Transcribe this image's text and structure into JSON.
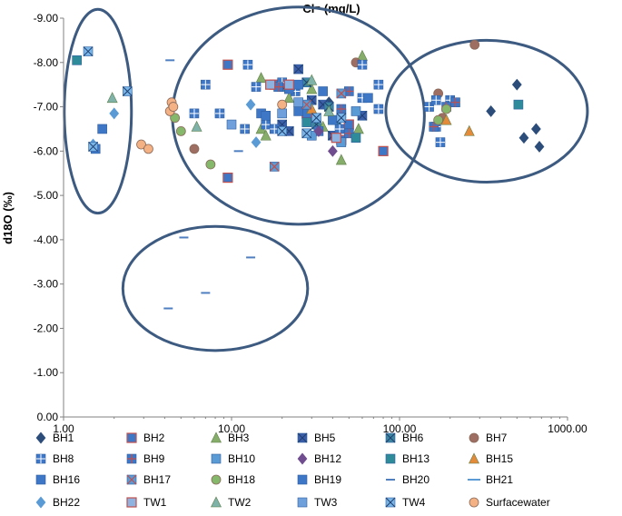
{
  "chart_data": {
    "type": "scatter",
    "title": "Cl⁻ (mg/L)",
    "ylabel": "d18O (‰)",
    "xscale": "log",
    "xlim": [
      1,
      1000
    ],
    "ylim": [
      0,
      -9
    ],
    "x_ticks": [
      "1.00",
      "10.00",
      "100.00",
      "1000.00"
    ],
    "y_ticks": [
      "0.00",
      "-1.00",
      "-2.00",
      "-3.00",
      "-4.00",
      "-5.00",
      "-6.00",
      "-7.00",
      "-8.00",
      "-9.00"
    ],
    "grid": false,
    "legend_position": "bottom",
    "groups": [
      {
        "label": "group-fresh",
        "cx": 1.6,
        "cy": -6.9,
        "rx_log": 0.2,
        "ry": 2.3
      },
      {
        "label": "group-mixed",
        "cx": 25,
        "cy": -6.8,
        "rx_log": 0.75,
        "ry": 2.45
      },
      {
        "label": "group-saline",
        "cx": 330,
        "cy": -6.9,
        "rx_log": 0.6,
        "ry": 1.6
      },
      {
        "label": "group-bh20",
        "cx": 8,
        "cy": -2.9,
        "rx_log": 0.55,
        "ry": 1.4
      }
    ],
    "series": [
      {
        "name": "BH1",
        "marker": "diamond",
        "color": "#2c4d7a",
        "points": [
          [
            500,
            -7.5
          ],
          [
            350,
            -6.9
          ],
          [
            650,
            -6.5
          ],
          [
            550,
            -6.3
          ],
          [
            680,
            -6.1
          ],
          [
            38,
            -7.1
          ]
        ]
      },
      {
        "name": "BH2",
        "marker": "square-red",
        "color": "#3f77c7",
        "points": [
          [
            9.5,
            -7.95
          ],
          [
            9.5,
            -5.4
          ],
          [
            18,
            -7.5
          ],
          [
            45,
            -6.25
          ],
          [
            50,
            -6.6
          ],
          [
            80,
            -6.0
          ],
          [
            28,
            -6.85
          ]
        ]
      },
      {
        "name": "BH3",
        "marker": "triangle",
        "color": "#87ad6b",
        "points": [
          [
            15,
            -7.65
          ],
          [
            30,
            -7.4
          ],
          [
            22,
            -7.2
          ],
          [
            15,
            -6.5
          ],
          [
            16,
            -6.35
          ],
          [
            35,
            -6.55
          ],
          [
            60,
            -8.15
          ],
          [
            45,
            -5.8
          ],
          [
            57,
            -6.5
          ]
        ]
      },
      {
        "name": "BH5",
        "marker": "square-x",
        "color": "#3c5ea8",
        "points": [
          [
            25,
            -7.85
          ],
          [
            30,
            -7.15
          ],
          [
            20,
            -6.6
          ],
          [
            22,
            -6.45
          ],
          [
            35,
            -7.05
          ],
          [
            45,
            -6.85
          ],
          [
            60,
            -6.8
          ],
          [
            40,
            -6.35
          ]
        ]
      },
      {
        "name": "BH6",
        "marker": "square-x",
        "color": "#3c86a0",
        "points": [
          [
            28,
            -7.55
          ],
          [
            20,
            -7.45
          ],
          [
            38,
            -7.0
          ],
          [
            32,
            -6.6
          ],
          [
            42,
            -6.7
          ]
        ]
      },
      {
        "name": "BH7",
        "marker": "circle",
        "color": "#9e6e62",
        "points": [
          [
            55,
            -8.0
          ],
          [
            280,
            -8.4
          ],
          [
            170,
            -7.3
          ],
          [
            180,
            -6.75
          ],
          [
            6,
            -6.05
          ]
        ]
      },
      {
        "name": "BH8",
        "marker": "square-plus",
        "color": "#3f77c7",
        "points": [
          [
            12.5,
            -7.95
          ],
          [
            20,
            -7.55
          ],
          [
            22,
            -7.45
          ],
          [
            60,
            -7.95
          ],
          [
            75,
            -7.5
          ],
          [
            60,
            -7.2
          ],
          [
            14,
            -7.45
          ],
          [
            8.5,
            -6.85
          ],
          [
            16,
            -6.6
          ],
          [
            18,
            -6.5
          ],
          [
            33,
            -6.45
          ],
          [
            44,
            -6.5
          ],
          [
            12,
            -6.5
          ],
          [
            7,
            -7.5
          ],
          [
            6,
            -6.85
          ],
          [
            75,
            -6.95
          ],
          [
            150,
            -7.0
          ],
          [
            165,
            -7.15
          ],
          [
            200,
            -7.15
          ],
          [
            165,
            -6.55
          ],
          [
            175,
            -6.2
          ],
          [
            24,
            -7.35
          ]
        ]
      },
      {
        "name": "BH9",
        "marker": "square-red-plus",
        "color": "#3f77c7",
        "points": [
          [
            50,
            -7.35
          ],
          [
            19,
            -7.45
          ],
          [
            160,
            -6.55
          ],
          [
            190,
            -7.0
          ],
          [
            215,
            -7.1
          ],
          [
            45,
            -6.95
          ],
          [
            50,
            -6.4
          ]
        ]
      },
      {
        "name": "BH10",
        "marker": "square",
        "color": "#5b9bd5",
        "points": [
          [
            55,
            -6.9
          ],
          [
            30,
            -6.35
          ],
          [
            45,
            -6.2
          ]
        ]
      },
      {
        "name": "BH12",
        "marker": "diamond",
        "color": "#6f4d8e",
        "points": [
          [
            40,
            -6.0
          ],
          [
            33,
            -6.45
          ]
        ]
      },
      {
        "name": "BH13",
        "marker": "square",
        "color": "#2e8b9a",
        "points": [
          [
            1.2,
            -8.05
          ],
          [
            510,
            -7.05
          ],
          [
            55,
            -6.3
          ],
          [
            28,
            -6.65
          ]
        ]
      },
      {
        "name": "BH15",
        "marker": "triangle",
        "color": "#e38b3a",
        "points": [
          [
            190,
            -6.7
          ],
          [
            260,
            -6.45
          ],
          [
            30,
            -6.95
          ]
        ]
      },
      {
        "name": "BH16",
        "marker": "square",
        "color": "#3f77c7",
        "points": [
          [
            1.7,
            -6.5
          ],
          [
            1.55,
            -6.05
          ],
          [
            22,
            -7.4
          ],
          [
            25,
            -6.9
          ],
          [
            40,
            -6.7
          ],
          [
            15,
            -6.85
          ]
        ]
      },
      {
        "name": "BH17",
        "marker": "square-red-x",
        "color": "#5b9bd5",
        "points": [
          [
            18,
            -5.65
          ],
          [
            28,
            -7.05
          ],
          [
            45,
            -7.3
          ]
        ]
      },
      {
        "name": "BH18",
        "marker": "circle",
        "color": "#86b86b",
        "points": [
          [
            4.6,
            -6.75
          ],
          [
            5,
            -6.45
          ],
          [
            7.5,
            -5.7
          ],
          [
            170,
            -6.7
          ],
          [
            190,
            -6.95
          ]
        ]
      },
      {
        "name": "BH19",
        "marker": "square",
        "color": "#3f77c7",
        "points": [
          [
            25,
            -7.5
          ],
          [
            65,
            -7.2
          ],
          [
            16,
            -6.8
          ],
          [
            35,
            -7.35
          ]
        ]
      },
      {
        "name": "BH20",
        "marker": "dash",
        "color": "#4f7fc1",
        "points": [
          [
            4.3,
            -8.05
          ],
          [
            5.2,
            -4.05
          ],
          [
            4.2,
            -2.45
          ],
          [
            7,
            -2.8
          ],
          [
            13,
            -3.6
          ],
          [
            11,
            -6.0
          ]
        ]
      },
      {
        "name": "BH21",
        "marker": "dash",
        "color": "#5b9bd5",
        "points": []
      },
      {
        "name": "BH22",
        "marker": "diamond",
        "color": "#5b9bd5",
        "points": [
          [
            2,
            -6.85
          ],
          [
            1.5,
            -6.15
          ],
          [
            13,
            -7.05
          ],
          [
            14,
            -6.2
          ]
        ]
      },
      {
        "name": "TW1",
        "marker": "square-red",
        "color": "#8fb3e0",
        "points": [
          [
            17,
            -7.5
          ],
          [
            22,
            -7.5
          ],
          [
            42,
            -6.3
          ]
        ]
      },
      {
        "name": "TW2",
        "marker": "triangle",
        "color": "#7fb2a8",
        "points": [
          [
            1.95,
            -7.2
          ],
          [
            6.2,
            -6.55
          ],
          [
            38,
            -6.9
          ],
          [
            30,
            -7.6
          ]
        ]
      },
      {
        "name": "TW3",
        "marker": "square",
        "color": "#6fa0db",
        "points": [
          [
            10,
            -6.6
          ],
          [
            25,
            -7.1
          ],
          [
            20,
            -6.85
          ]
        ]
      },
      {
        "name": "TW4",
        "marker": "square-x",
        "color": "#7ab5e8",
        "points": [
          [
            1.4,
            -8.25
          ],
          [
            2.4,
            -7.35
          ],
          [
            1.5,
            -6.1
          ],
          [
            32,
            -6.75
          ],
          [
            45,
            -6.75
          ],
          [
            20,
            -6.45
          ],
          [
            28,
            -6.4
          ]
        ]
      },
      {
        "name": "Surfacewater",
        "marker": "circle",
        "color": "#f4b183",
        "points": [
          [
            4.4,
            -7.1
          ],
          [
            4.3,
            -6.9
          ],
          [
            4.5,
            -7.0
          ],
          [
            2.9,
            -6.15
          ],
          [
            3.2,
            -6.05
          ],
          [
            20,
            -7.05
          ]
        ]
      }
    ]
  }
}
